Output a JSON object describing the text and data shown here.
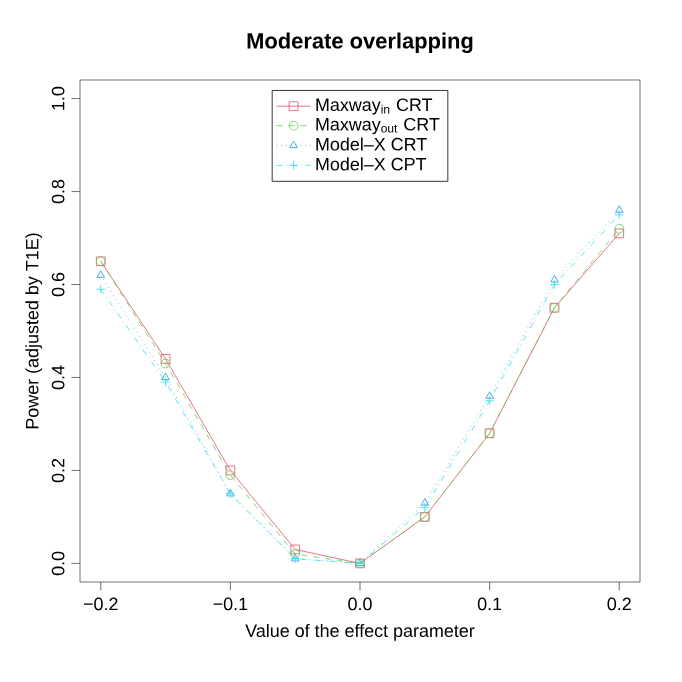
{
  "chart_data": {
    "type": "line",
    "title": "Moderate overlapping",
    "xlabel": "Value of the effect parameter",
    "ylabel": "Power (adjusted by T1E)",
    "x": [
      -0.2,
      -0.15,
      -0.1,
      -0.05,
      0,
      0.05,
      0.1,
      0.15,
      0.2
    ],
    "series": [
      {
        "name": "Maxway$_{in}$ CRT",
        "color": "#df536b",
        "marker": "square",
        "line_style": "solid",
        "values": [
          0.65,
          0.44,
          0.2,
          0.03,
          0.0,
          0.1,
          0.28,
          0.55,
          0.71
        ]
      },
      {
        "name": "Maxway$_{out}$ CRT",
        "color": "#61d04f",
        "marker": "circle",
        "line_style": "dashed",
        "values": [
          0.65,
          0.43,
          0.19,
          0.02,
          0.0,
          0.1,
          0.28,
          0.55,
          0.72
        ]
      },
      {
        "name": "Model–X CRT",
        "color": "#2297e6",
        "marker": "triangle",
        "line_style": "dotted",
        "values": [
          0.62,
          0.4,
          0.15,
          0.01,
          0.0,
          0.13,
          0.36,
          0.61,
          0.76
        ]
      },
      {
        "name": "Model–X CPT",
        "color": "#28e2e5",
        "marker": "cross",
        "line_style": "dashdot",
        "values": [
          0.59,
          0.39,
          0.15,
          0.01,
          0.0,
          0.12,
          0.35,
          0.6,
          0.75
        ]
      }
    ],
    "xlim": [
      -0.216,
      0.216
    ],
    "ylim": [
      -0.04,
      1.04
    ],
    "xticks": [
      {
        "value": -0.2,
        "label": "−0.2"
      },
      {
        "value": -0.1,
        "label": "−0.1"
      },
      "0.0",
      0.1,
      0.2
    ],
    "yticks": [
      "0.0",
      0.2,
      0.4,
      0.6,
      0.8,
      "1.0"
    ],
    "legend": "top",
    "grid": false
  }
}
